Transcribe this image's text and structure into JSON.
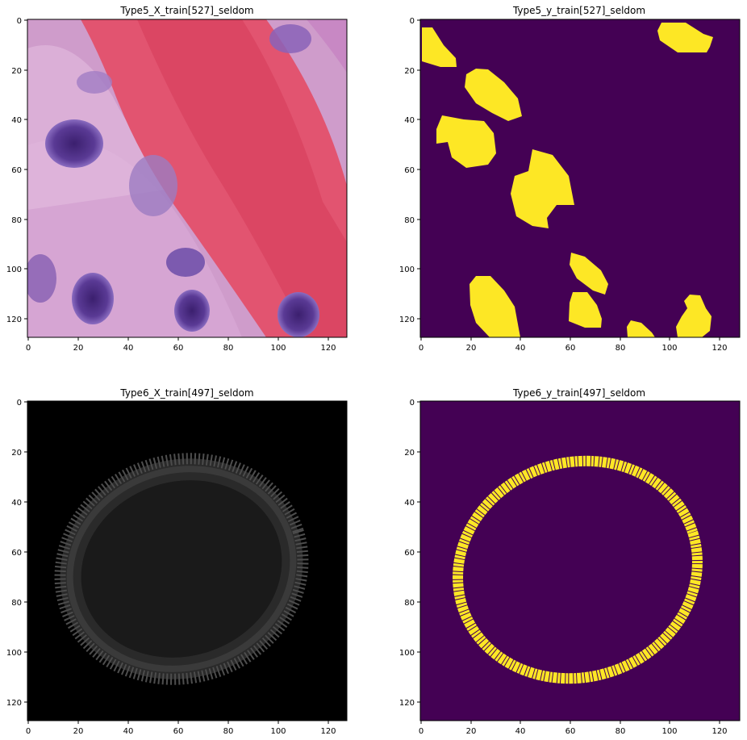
{
  "figure": {
    "panels": [
      {
        "id": "p1",
        "title": "Type5_X_train[527]_seldom",
        "kind": "histology-image"
      },
      {
        "id": "p2",
        "title": "Type5_y_train[527]_seldom",
        "kind": "mask"
      },
      {
        "id": "p3",
        "title": "Type6_X_train[497]_seldom",
        "kind": "fluorescence-image"
      },
      {
        "id": "p4",
        "title": "Type6_y_train[497]_seldom",
        "kind": "mask"
      }
    ],
    "xticks": [
      "0",
      "20",
      "40",
      "60",
      "80",
      "100",
      "120"
    ],
    "yticks": [
      "0",
      "20",
      "40",
      "60",
      "80",
      "100",
      "120"
    ],
    "axis_range": [
      0,
      128
    ],
    "colors": {
      "mask_background": "#440154",
      "mask_foreground": "#fde725",
      "dark_background": "#000000",
      "histology_base": "#c98fc4",
      "tissue_red": "#e4566e",
      "nucleus": "#4a2a7f"
    }
  }
}
